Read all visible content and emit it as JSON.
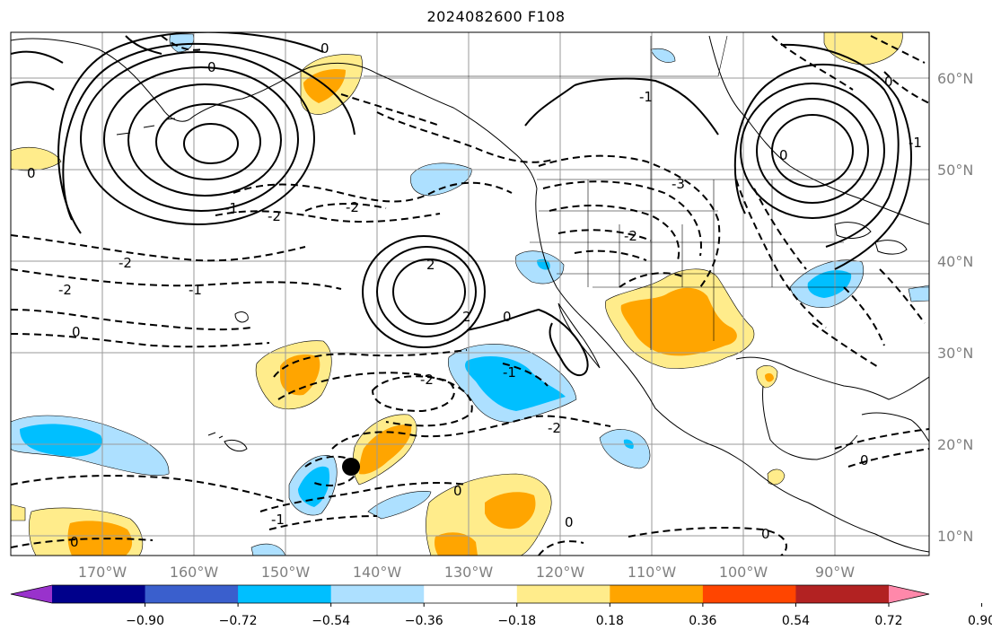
{
  "title": "2024082600 F108",
  "latitude_labels": [
    "60°N",
    "50°N",
    "40°N",
    "30°N",
    "20°N",
    "10°N"
  ],
  "longitude_labels": [
    "170°W",
    "160°W",
    "150°W",
    "140°W",
    "130°W",
    "120°W",
    "110°W",
    "100°W",
    "90°W"
  ],
  "colorbar": {
    "tick_labels": [
      "−0.90",
      "−0.72",
      "−0.54",
      "−0.36",
      "−0.18",
      "0.18",
      "0.36",
      "0.54",
      "0.72",
      "0.90"
    ],
    "colors": [
      "#9932CC",
      "#00008B",
      "#3A5FCD",
      "#00BFFF",
      "#ADE0FF",
      "#FFFFFF",
      "#FFEC8B",
      "#FFA500",
      "#FF4500",
      "#B22222",
      "#FF88AA"
    ]
  },
  "contour_labels": [
    "0",
    "0",
    "-2",
    "-2",
    "-1",
    "0",
    "-2",
    "-1",
    "2",
    "0",
    "-2",
    "-2",
    "-2",
    "-1",
    "0",
    "-1",
    "-2",
    "0",
    "0",
    "0",
    "-1",
    "2",
    "0",
    "0",
    "-3",
    "0",
    "-1",
    "0"
  ],
  "marker": "storm-position-dot"
}
